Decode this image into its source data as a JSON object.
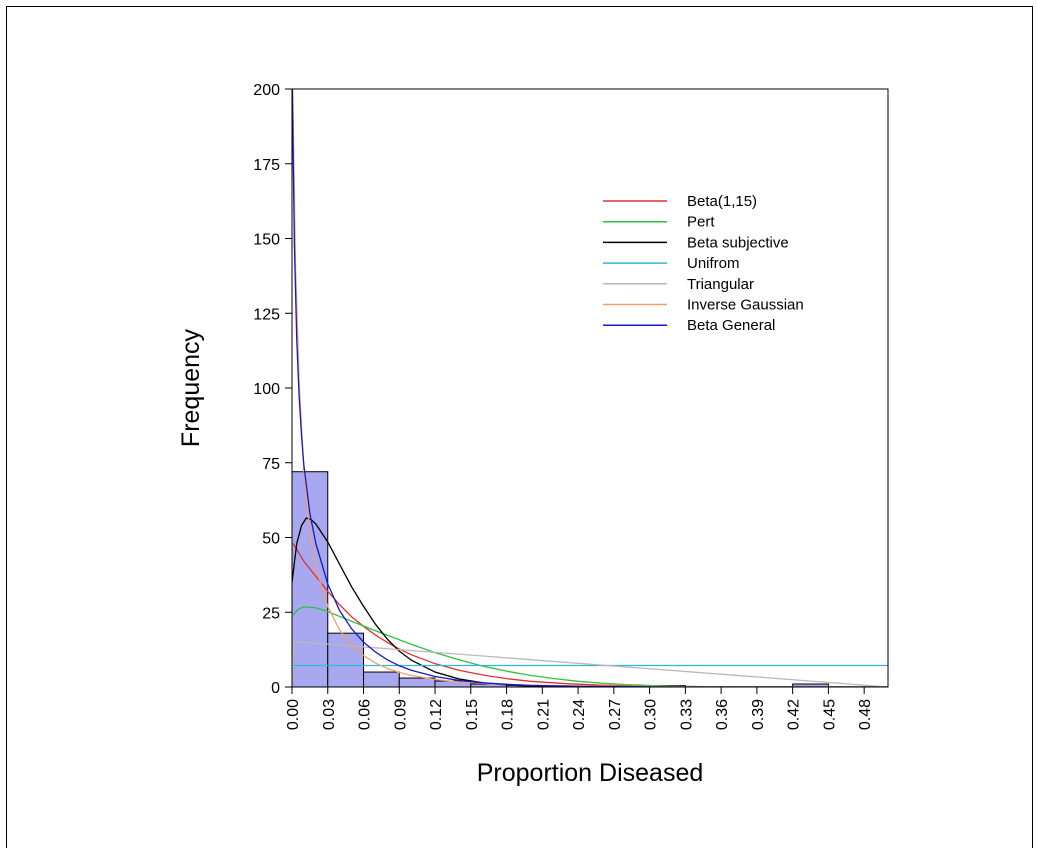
{
  "chart_data": {
    "type": "histogram-with-density-curves",
    "title": "",
    "xlabel": "Proportion Diseased",
    "ylabel": "Frequency",
    "xlim": [
      0,
      0.5
    ],
    "ylim": [
      0,
      200
    ],
    "xticks": [
      "0.00",
      "0.03",
      "0.06",
      "0.09",
      "0.12",
      "0.15",
      "0.18",
      "0.21",
      "0.24",
      "0.27",
      "0.30",
      "0.33",
      "0.36",
      "0.39",
      "0.42",
      "0.45",
      "0.48"
    ],
    "yticks": [
      "0",
      "25",
      "50",
      "75",
      "100",
      "125",
      "150",
      "175",
      "200"
    ],
    "grid": false,
    "legend_position": "top-right",
    "histogram": {
      "color": "#a8a8f0",
      "edge_color": "#000000",
      "bins": [
        {
          "x0": 0.0,
          "x1": 0.03,
          "value": 72
        },
        {
          "x0": 0.03,
          "x1": 0.06,
          "value": 18
        },
        {
          "x0": 0.06,
          "x1": 0.09,
          "value": 5
        },
        {
          "x0": 0.09,
          "x1": 0.12,
          "value": 3
        },
        {
          "x0": 0.12,
          "x1": 0.15,
          "value": 2
        },
        {
          "x0": 0.15,
          "x1": 0.18,
          "value": 1
        },
        {
          "x0": 0.18,
          "x1": 0.21,
          "value": 0.5
        },
        {
          "x0": 0.21,
          "x1": 0.24,
          "value": 0
        },
        {
          "x0": 0.24,
          "x1": 0.27,
          "value": 0
        },
        {
          "x0": 0.27,
          "x1": 0.3,
          "value": 0.5
        },
        {
          "x0": 0.3,
          "x1": 0.33,
          "value": 0.5
        },
        {
          "x0": 0.33,
          "x1": 0.36,
          "value": 0
        },
        {
          "x0": 0.36,
          "x1": 0.39,
          "value": 0
        },
        {
          "x0": 0.39,
          "x1": 0.42,
          "value": 0
        },
        {
          "x0": 0.42,
          "x1": 0.45,
          "value": 1
        },
        {
          "x0": 0.45,
          "x1": 0.48,
          "value": 0
        }
      ]
    },
    "series": [
      {
        "name": "Beta(1,15)",
        "color": "#e03030",
        "points": [
          [
            0.001,
            48
          ],
          [
            0.01,
            42
          ],
          [
            0.02,
            37
          ],
          [
            0.03,
            32
          ],
          [
            0.04,
            27.5
          ],
          [
            0.05,
            23.5
          ],
          [
            0.06,
            20.3
          ],
          [
            0.07,
            17.4
          ],
          [
            0.08,
            14.9
          ],
          [
            0.09,
            12.7
          ],
          [
            0.1,
            10.8
          ],
          [
            0.12,
            7.8
          ],
          [
            0.14,
            5.6
          ],
          [
            0.16,
            4.0
          ],
          [
            0.18,
            2.8
          ],
          [
            0.2,
            1.9
          ],
          [
            0.23,
            1.1
          ],
          [
            0.26,
            0.6
          ],
          [
            0.3,
            0.25
          ],
          [
            0.35,
            0.08
          ],
          [
            0.4,
            0.02
          ],
          [
            0.45,
            0.0
          ],
          [
            0.5,
            0.0
          ]
        ]
      },
      {
        "name": "Pert",
        "color": "#30c040",
        "points": [
          [
            0.001,
            24
          ],
          [
            0.005,
            26
          ],
          [
            0.01,
            26.8
          ],
          [
            0.02,
            26.5
          ],
          [
            0.03,
            25.2
          ],
          [
            0.04,
            23.6
          ],
          [
            0.05,
            22.0
          ],
          [
            0.06,
            20.4
          ],
          [
            0.07,
            18.8
          ],
          [
            0.08,
            17.3
          ],
          [
            0.09,
            15.8
          ],
          [
            0.1,
            14.3
          ],
          [
            0.12,
            11.5
          ],
          [
            0.14,
            9.1
          ],
          [
            0.16,
            7.0
          ],
          [
            0.18,
            5.3
          ],
          [
            0.2,
            3.9
          ],
          [
            0.22,
            2.8
          ],
          [
            0.24,
            1.9
          ],
          [
            0.26,
            1.3
          ],
          [
            0.28,
            0.8
          ],
          [
            0.3,
            0.5
          ],
          [
            0.33,
            0.2
          ],
          [
            0.36,
            0.08
          ],
          [
            0.4,
            0.02
          ],
          [
            0.45,
            0.0
          ],
          [
            0.5,
            0.0
          ]
        ]
      },
      {
        "name": "Beta subjective",
        "color": "#000000",
        "points": [
          [
            0.0,
            35
          ],
          [
            0.004,
            48
          ],
          [
            0.008,
            54
          ],
          [
            0.012,
            56.5
          ],
          [
            0.016,
            56
          ],
          [
            0.02,
            54.5
          ],
          [
            0.03,
            48.5
          ],
          [
            0.04,
            41
          ],
          [
            0.05,
            33.5
          ],
          [
            0.06,
            27
          ],
          [
            0.07,
            21
          ],
          [
            0.08,
            16
          ],
          [
            0.09,
            12
          ],
          [
            0.1,
            9
          ],
          [
            0.12,
            5
          ],
          [
            0.14,
            2.7
          ],
          [
            0.16,
            1.4
          ],
          [
            0.18,
            0.7
          ],
          [
            0.2,
            0.3
          ],
          [
            0.24,
            0.06
          ],
          [
            0.3,
            0.0
          ],
          [
            0.5,
            0.0
          ]
        ]
      },
      {
        "name": "Unifrom",
        "color": "#30b8d8",
        "points": [
          [
            0.0,
            7.2
          ],
          [
            0.5,
            7.2
          ]
        ]
      },
      {
        "name": "Triangular",
        "color": "#b8b8b8",
        "points": [
          [
            0.0,
            0.0
          ],
          [
            0.0015,
            15.2
          ],
          [
            0.5,
            0.0
          ]
        ]
      },
      {
        "name": "Inverse Gaussian",
        "color": "#f0a070",
        "points": [
          [
            0.0005,
            200
          ],
          [
            0.001,
            190
          ],
          [
            0.003,
            140
          ],
          [
            0.006,
            102
          ],
          [
            0.01,
            72
          ],
          [
            0.015,
            52
          ],
          [
            0.02,
            40
          ],
          [
            0.03,
            27
          ],
          [
            0.04,
            19
          ],
          [
            0.05,
            14
          ],
          [
            0.06,
            10.5
          ],
          [
            0.07,
            8
          ],
          [
            0.08,
            6.2
          ],
          [
            0.09,
            4.9
          ],
          [
            0.1,
            3.9
          ],
          [
            0.12,
            2.5
          ],
          [
            0.14,
            1.7
          ],
          [
            0.17,
            1.0
          ],
          [
            0.2,
            0.6
          ],
          [
            0.25,
            0.3
          ],
          [
            0.3,
            0.15
          ],
          [
            0.4,
            0.05
          ],
          [
            0.5,
            0.02
          ]
        ]
      },
      {
        "name": "Beta General",
        "color": "#1818c8",
        "points": [
          [
            0.0003,
            200
          ],
          [
            0.001,
            178
          ],
          [
            0.002,
            148
          ],
          [
            0.004,
            116
          ],
          [
            0.006,
            97
          ],
          [
            0.008,
            84
          ],
          [
            0.01,
            74
          ],
          [
            0.015,
            58
          ],
          [
            0.02,
            48
          ],
          [
            0.03,
            34.5
          ],
          [
            0.04,
            25.5
          ],
          [
            0.05,
            19.5
          ],
          [
            0.06,
            15
          ],
          [
            0.07,
            11.7
          ],
          [
            0.08,
            9.1
          ],
          [
            0.09,
            7.1
          ],
          [
            0.1,
            5.6
          ],
          [
            0.12,
            3.5
          ],
          [
            0.14,
            2.2
          ],
          [
            0.16,
            1.4
          ],
          [
            0.18,
            0.9
          ],
          [
            0.2,
            0.55
          ],
          [
            0.25,
            0.17
          ],
          [
            0.3,
            0.05
          ],
          [
            0.4,
            0.0
          ],
          [
            0.5,
            0.0
          ]
        ]
      }
    ]
  }
}
